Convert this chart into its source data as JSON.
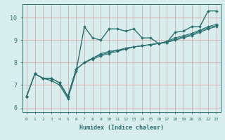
{
  "xlabel": "Humidex (Indice chaleur)",
  "bg_color": "#d8eeee",
  "line_color": "#2d7070",
  "grid_color": "#d4a0a0",
  "xlim": [
    -0.5,
    23.5
  ],
  "ylim": [
    5.8,
    10.6
  ],
  "xticks": [
    0,
    1,
    2,
    3,
    4,
    5,
    6,
    7,
    8,
    9,
    10,
    11,
    12,
    13,
    14,
    15,
    16,
    17,
    18,
    19,
    20,
    21,
    22,
    23
  ],
  "yticks": [
    6,
    7,
    8,
    9,
    10
  ],
  "series": [
    [
      6.5,
      7.5,
      7.3,
      7.2,
      7.0,
      6.4,
      7.6,
      9.6,
      9.1,
      9.0,
      9.5,
      9.5,
      9.4,
      9.5,
      9.1,
      9.1,
      8.85,
      8.9,
      9.35,
      9.4,
      9.6,
      9.6,
      10.3,
      10.3
    ],
    [
      6.5,
      7.5,
      7.3,
      7.3,
      7.1,
      6.5,
      7.7,
      8.0,
      8.2,
      8.4,
      8.5,
      8.55,
      8.6,
      8.7,
      8.75,
      8.8,
      8.85,
      8.95,
      9.1,
      9.2,
      9.3,
      9.45,
      9.6,
      9.7
    ],
    [
      6.5,
      7.5,
      7.3,
      7.3,
      7.1,
      6.5,
      7.7,
      8.0,
      8.2,
      8.35,
      8.45,
      8.55,
      8.65,
      8.7,
      8.75,
      8.8,
      8.85,
      8.9,
      9.05,
      9.15,
      9.25,
      9.4,
      9.55,
      9.65
    ],
    [
      6.5,
      7.5,
      7.3,
      7.3,
      7.1,
      6.5,
      7.7,
      8.0,
      8.15,
      8.3,
      8.4,
      8.5,
      8.6,
      8.7,
      8.75,
      8.8,
      8.85,
      8.9,
      9.0,
      9.1,
      9.2,
      9.35,
      9.5,
      9.6
    ]
  ]
}
